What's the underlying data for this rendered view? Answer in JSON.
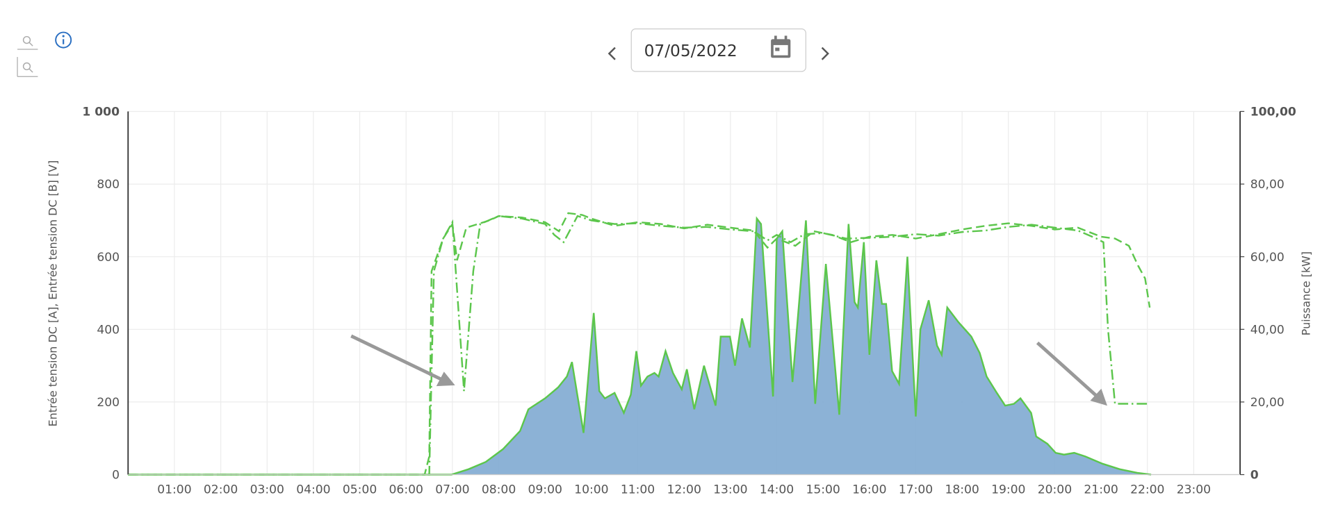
{
  "toolbar": {
    "date": "07/05/2022"
  },
  "chart_data": {
    "type": "area-line",
    "y_label": "Entrée tension DC [A], Entrée tension DC [B] [V]",
    "y2_label": "Puissance [kW]",
    "xlim": [
      0,
      24
    ],
    "xticks": [
      {
        "value": 1,
        "label": "01:00"
      },
      {
        "value": 2,
        "label": "02:00"
      },
      {
        "value": 3,
        "label": "03:00"
      },
      {
        "value": 4,
        "label": "04:00"
      },
      {
        "value": 5,
        "label": "05:00"
      },
      {
        "value": 6,
        "label": "06:00"
      },
      {
        "value": 7,
        "label": "07:00"
      },
      {
        "value": 8,
        "label": "08:00"
      },
      {
        "value": 9,
        "label": "09:00"
      },
      {
        "value": 10,
        "label": "10:00"
      },
      {
        "value": 11,
        "label": "11:00"
      },
      {
        "value": 12,
        "label": "12:00"
      },
      {
        "value": 13,
        "label": "13:00"
      },
      {
        "value": 14,
        "label": "14:00"
      },
      {
        "value": 15,
        "label": "15:00"
      },
      {
        "value": 16,
        "label": "16:00"
      },
      {
        "value": 17,
        "label": "17:00"
      },
      {
        "value": 18,
        "label": "18:00"
      },
      {
        "value": 19,
        "label": "19:00"
      },
      {
        "value": 20,
        "label": "20:00"
      },
      {
        "value": 21,
        "label": "21:00"
      },
      {
        "value": 22,
        "label": "22:00"
      },
      {
        "value": 23,
        "label": "23:00"
      }
    ],
    "ylim": [
      0,
      1000
    ],
    "yticks": [
      0,
      200,
      400,
      600,
      800,
      {
        "value": 1000,
        "label": "1 000"
      }
    ],
    "y2lim": [
      0,
      100
    ],
    "y2ticks": [
      0,
      {
        "value": 20,
        "label": "20,00"
      },
      {
        "value": 40,
        "label": "40,00"
      },
      {
        "value": 60,
        "label": "60,00"
      },
      {
        "value": 80,
        "label": "80,00"
      },
      {
        "value": 100,
        "label": "100,00"
      }
    ],
    "grid": true,
    "series": [
      {
        "kind": "area",
        "axis": "y2",
        "color": "#86aed4",
        "stroke": "#5cc64c",
        "x": [
          0,
          6.98,
          7.35,
          7.72,
          8.09,
          8.46,
          8.64,
          9.0,
          9.28,
          9.47,
          9.58,
          9.83,
          10.05,
          10.17,
          10.29,
          10.5,
          10.7,
          10.85,
          10.97,
          11.07,
          11.21,
          11.36,
          11.45,
          11.6,
          11.76,
          11.95,
          12.06,
          12.22,
          12.43,
          12.68,
          12.79,
          12.99,
          13.1,
          13.25,
          13.42,
          13.57,
          13.66,
          13.92,
          14.0,
          14.12,
          14.34,
          14.63,
          14.83,
          15.06,
          15.35,
          15.55,
          15.68,
          15.75,
          15.88,
          16.0,
          16.15,
          16.27,
          16.36,
          16.49,
          16.64,
          16.82,
          17.0,
          17.1,
          17.28,
          17.46,
          17.56,
          17.68,
          17.92,
          18.2,
          18.38,
          18.53,
          18.75,
          18.93,
          19.12,
          19.26,
          19.49,
          19.6,
          19.84,
          20.02,
          20.2,
          20.42,
          20.66,
          21.03,
          21.4,
          21.78,
          22.08
        ],
        "values": [
          0,
          0,
          1.5,
          3.5,
          7,
          12,
          18,
          21,
          24,
          27,
          31,
          11.5,
          44.5,
          23,
          21,
          22.5,
          17,
          22,
          34,
          24.5,
          27,
          28,
          27,
          34,
          28,
          23.5,
          29,
          18,
          30,
          19,
          38,
          38,
          30,
          43,
          35,
          70.5,
          69,
          21.5,
          65,
          67,
          25.5,
          70,
          19.5,
          58,
          16.5,
          69,
          47.5,
          46,
          64,
          33,
          59,
          47,
          47,
          28.5,
          25,
          60,
          16,
          40,
          48,
          35.5,
          33,
          46,
          42,
          38,
          33.5,
          27,
          22.5,
          19,
          19.5,
          21,
          17,
          10.5,
          8.5,
          6,
          5.5,
          6,
          5,
          3,
          1.5,
          0.5,
          0
        ]
      },
      {
        "kind": "line",
        "dash": "dashdot",
        "color": "#5cc64c",
        "x": [
          0,
          6.5,
          6.6,
          6.8,
          7.0,
          7.25,
          7.45,
          7.6,
          8.0,
          8.5,
          9.0,
          9.2,
          9.4,
          9.7,
          10.0,
          10.5,
          11.0,
          11.5,
          12.0,
          12.5,
          13.0,
          13.5,
          13.8,
          14.0,
          14.3,
          14.6,
          15.0,
          15.5,
          16.0,
          16.5,
          17.0,
          17.5,
          18.0,
          18.5,
          19.0,
          19.5,
          20.0,
          20.5,
          20.9,
          21.05,
          21.15,
          21.3,
          21.6,
          22.05
        ],
        "values": [
          0,
          0,
          560,
          650,
          695,
          230,
          560,
          690,
          712,
          705,
          690,
          660,
          640,
          712,
          700,
          690,
          692,
          685,
          680,
          682,
          675,
          670,
          645,
          660,
          640,
          662,
          665,
          650,
          652,
          655,
          662,
          658,
          668,
          672,
          682,
          688,
          680,
          672,
          650,
          640,
          400,
          195,
          195,
          195
        ]
      },
      {
        "kind": "line",
        "dash": "dash",
        "color": "#5cc64c",
        "x": [
          0,
          6.4,
          6.5,
          6.55,
          6.8,
          7.0,
          7.1,
          7.3,
          7.8,
          8.0,
          8.5,
          9.0,
          9.3,
          9.5,
          9.8,
          10.0,
          10.5,
          11.0,
          11.5,
          12.0,
          12.5,
          13.0,
          13.5,
          13.8,
          14.0,
          14.4,
          14.8,
          15.2,
          15.6,
          16.0,
          16.5,
          17.0,
          17.5,
          18.0,
          18.5,
          19.0,
          19.5,
          20.0,
          20.5,
          21.0,
          21.3,
          21.6,
          21.8,
          21.95,
          22.05
        ],
        "values": [
          0,
          0,
          50,
          560,
          650,
          690,
          590,
          680,
          700,
          712,
          708,
          695,
          670,
          720,
          715,
          705,
          685,
          695,
          690,
          678,
          688,
          680,
          672,
          625,
          650,
          630,
          670,
          660,
          640,
          655,
          660,
          650,
          662,
          675,
          685,
          692,
          685,
          675,
          680,
          655,
          650,
          630,
          575,
          540,
          460
        ]
      }
    ]
  }
}
